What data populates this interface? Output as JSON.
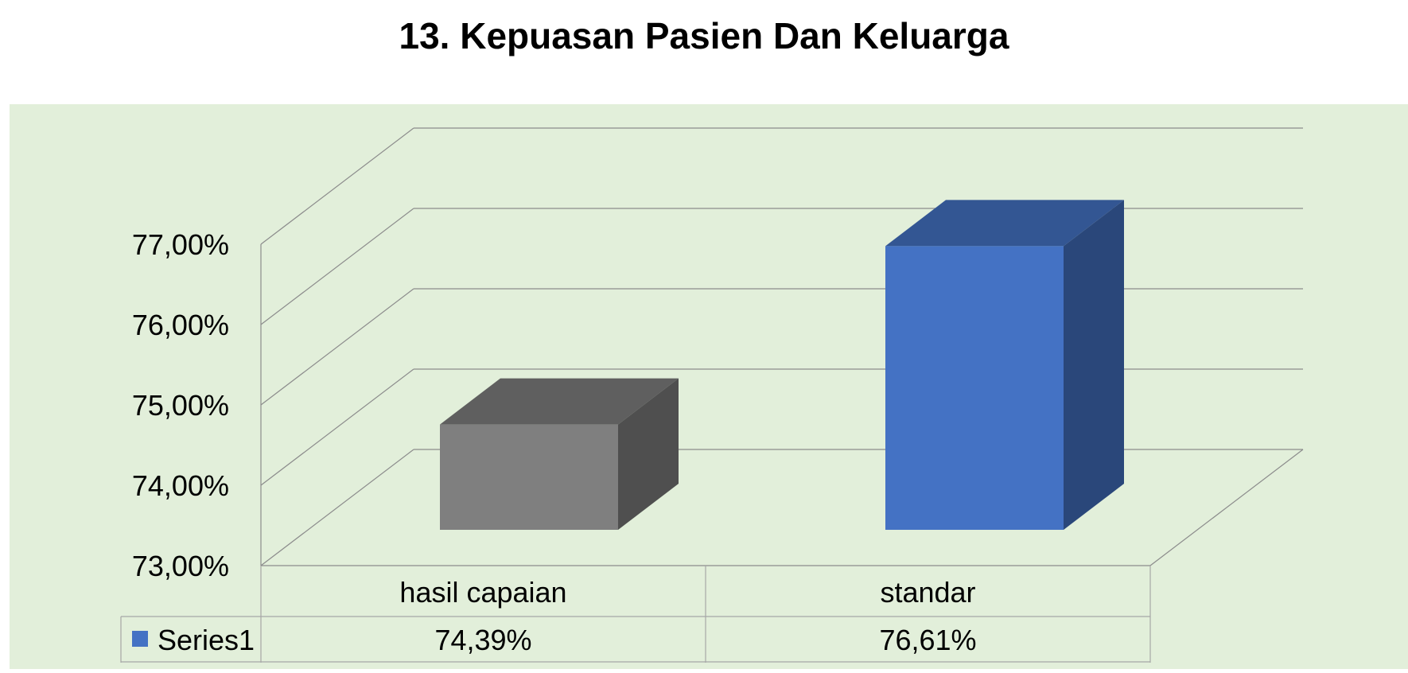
{
  "title": "13. Kepuasan Pasien Dan Keluarga",
  "chart_data": {
    "type": "bar",
    "title": "13. Kepuasan Pasien Dan Keluarga",
    "categories": [
      "hasil capaian",
      "standar"
    ],
    "series": [
      {
        "name": "Series1",
        "values": [
          74.39,
          76.61
        ],
        "value_labels": [
          "74,39%",
          "76,61%"
        ],
        "colors": [
          "#7f7f7f",
          "#4472c4"
        ]
      }
    ],
    "ylim": [
      73,
      77
    ],
    "yticks": [
      73,
      74,
      75,
      76,
      77
    ],
    "ytick_labels": [
      "73,00%",
      "74,00%",
      "75,00%",
      "76,00%",
      "77,00%"
    ],
    "xlabel": "",
    "ylabel": "",
    "grid": true,
    "data_table": true,
    "style": "3d-column",
    "background": "#e2efda",
    "gridline_color": "#8c8c8c"
  }
}
